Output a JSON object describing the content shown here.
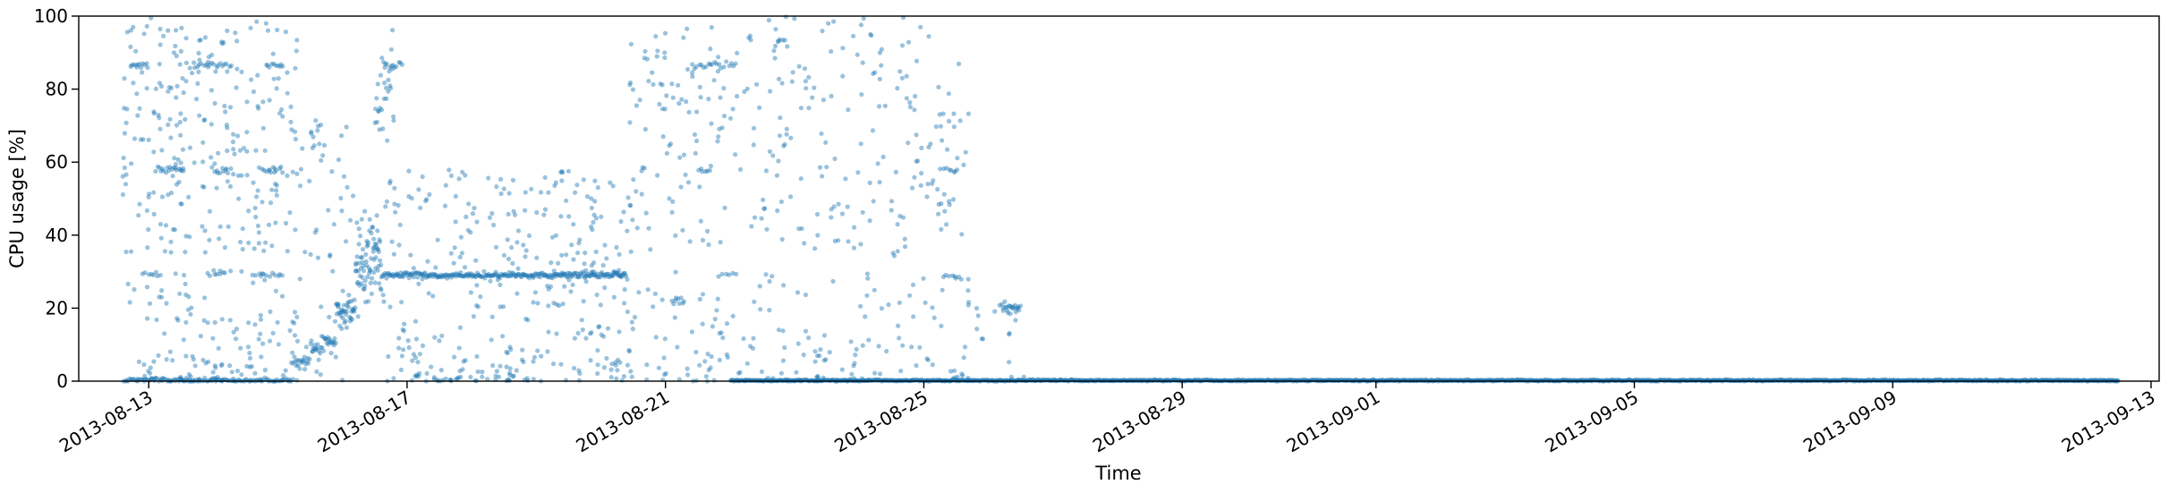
{
  "chart_data": {
    "type": "scatter",
    "xlabel": "Time",
    "ylabel": "CPU usage [%]",
    "ylim": [
      0,
      100
    ],
    "xlim": [
      "2013-08-11T22:00",
      "2013-09-13T03:00"
    ],
    "y_ticks": [
      0,
      20,
      40,
      60,
      80,
      100
    ],
    "y_tick_labels": [
      "0",
      "20",
      "40",
      "60",
      "80",
      "100"
    ],
    "x_ticks": [
      "2013-08-13",
      "2013-08-17",
      "2013-08-21",
      "2013-08-25",
      "2013-08-29",
      "2013-09-01",
      "2013-09-05",
      "2013-09-09",
      "2013-09-13"
    ],
    "x_tick_labels": [
      "2013-08-13",
      "2013-08-17",
      "2013-08-21",
      "2013-08-25",
      "2013-08-29",
      "2013-09-01",
      "2013-09-05",
      "2013-09-09",
      "2013-09-13"
    ],
    "grid": false,
    "point_color": "#1f77b4",
    "point_alpha": 0.45,
    "x_unit": "days_since_2013-08-12",
    "clusters": [
      {
        "x_start": 0.7,
        "x_end": 1.0,
        "y": 86.5,
        "n": 12,
        "jitter": 0.4
      },
      {
        "x_start": 1.1,
        "x_end": 1.55,
        "y": 58.0,
        "n": 18,
        "jitter": 0.4
      },
      {
        "x_start": 0.9,
        "x_end": 1.2,
        "y": 29.5,
        "n": 8,
        "jitter": 0.4
      },
      {
        "x_start": 1.7,
        "x_end": 2.3,
        "y": 86.5,
        "n": 18,
        "jitter": 0.4
      },
      {
        "x_start": 2.0,
        "x_end": 2.25,
        "y": 57.5,
        "n": 8,
        "jitter": 0.4
      },
      {
        "x_start": 1.9,
        "x_end": 2.2,
        "y": 29.5,
        "n": 8,
        "jitter": 0.4
      },
      {
        "x_start": 2.8,
        "x_end": 3.1,
        "y": 86.5,
        "n": 10,
        "jitter": 0.4
      },
      {
        "x_start": 2.7,
        "x_end": 3.1,
        "y": 58.0,
        "n": 12,
        "jitter": 0.4
      },
      {
        "x_start": 2.6,
        "x_end": 3.1,
        "y": 29.0,
        "n": 12,
        "jitter": 0.4
      },
      {
        "x_start": 3.2,
        "x_end": 3.5,
        "y": 5.5,
        "n": 20,
        "jitter": 1.0
      },
      {
        "x_start": 3.5,
        "x_end": 3.7,
        "y": 66.0,
        "n": 10,
        "jitter": 3.0
      },
      {
        "x_start": 3.5,
        "x_end": 3.9,
        "y": 10.0,
        "n": 35,
        "jitter": 1.8
      },
      {
        "x_start": 3.9,
        "x_end": 4.2,
        "y": 19.0,
        "n": 40,
        "jitter": 2.0
      },
      {
        "x_start": 4.2,
        "x_end": 4.6,
        "y": 33.0,
        "n": 80,
        "jitter": 6.0
      },
      {
        "x_start": 4.5,
        "x_end": 4.8,
        "y": 78.0,
        "n": 30,
        "jitter": 8.0
      },
      {
        "x_start": 4.65,
        "x_end": 4.95,
        "y": 86.5,
        "n": 10,
        "jitter": 0.5
      },
      {
        "x_start": 4.6,
        "x_end": 8.4,
        "y": 29.0,
        "n": 260,
        "jitter": 0.4
      },
      {
        "x_start": 9.1,
        "x_end": 9.3,
        "y": 22.0,
        "n": 8,
        "jitter": 0.6
      },
      {
        "x_start": 9.4,
        "x_end": 10.1,
        "y": 86.5,
        "n": 20,
        "jitter": 0.4
      },
      {
        "x_start": 9.5,
        "x_end": 9.7,
        "y": 57.5,
        "n": 6,
        "jitter": 0.4
      },
      {
        "x_start": 9.8,
        "x_end": 10.1,
        "y": 29.0,
        "n": 6,
        "jitter": 0.4
      },
      {
        "x_start": 10.7,
        "x_end": 10.9,
        "y": 92.5,
        "n": 6,
        "jitter": 0.6
      },
      {
        "x_start": 10.8,
        "x_end": 10.95,
        "y": 66.0,
        "n": 4,
        "jitter": 1.0
      },
      {
        "x_start": 12.5,
        "x_end": 12.6,
        "y": 35.0,
        "n": 3,
        "jitter": 0.5
      },
      {
        "x_start": 13.25,
        "x_end": 13.5,
        "y": 58.0,
        "n": 6,
        "jitter": 0.4
      },
      {
        "x_start": 13.3,
        "x_end": 13.6,
        "y": 28.5,
        "n": 8,
        "jitter": 0.5
      },
      {
        "x_start": 14.2,
        "x_end": 14.5,
        "y": 20.0,
        "n": 22,
        "jitter": 0.8
      },
      {
        "x_start": 0.6,
        "x_end": 3.2,
        "y": 0.3,
        "n": 120,
        "jitter": 0.3
      },
      {
        "x_start": 10.0,
        "x_end": 31.5,
        "y": 0.2,
        "n": 1700,
        "jitter": 0.1
      }
    ],
    "scatter_regions": [
      {
        "x_start": 0.6,
        "x_end": 3.3,
        "y_min": 0,
        "y_max": 100,
        "n": 380
      },
      {
        "x_start": 3.3,
        "x_end": 4.2,
        "y_min": 0,
        "y_max": 70,
        "n": 40
      },
      {
        "x_start": 4.6,
        "x_end": 8.4,
        "y_min": 0,
        "y_max": 58,
        "n": 330
      },
      {
        "x_start": 8.4,
        "x_end": 10.1,
        "y_min": 0,
        "y_max": 100,
        "n": 160
      },
      {
        "x_start": 10.1,
        "x_end": 13.7,
        "y_min": 0,
        "y_max": 100,
        "n": 300
      },
      {
        "x_start": 13.6,
        "x_end": 14.6,
        "y_min": 0,
        "y_max": 22,
        "n": 15
      }
    ]
  }
}
